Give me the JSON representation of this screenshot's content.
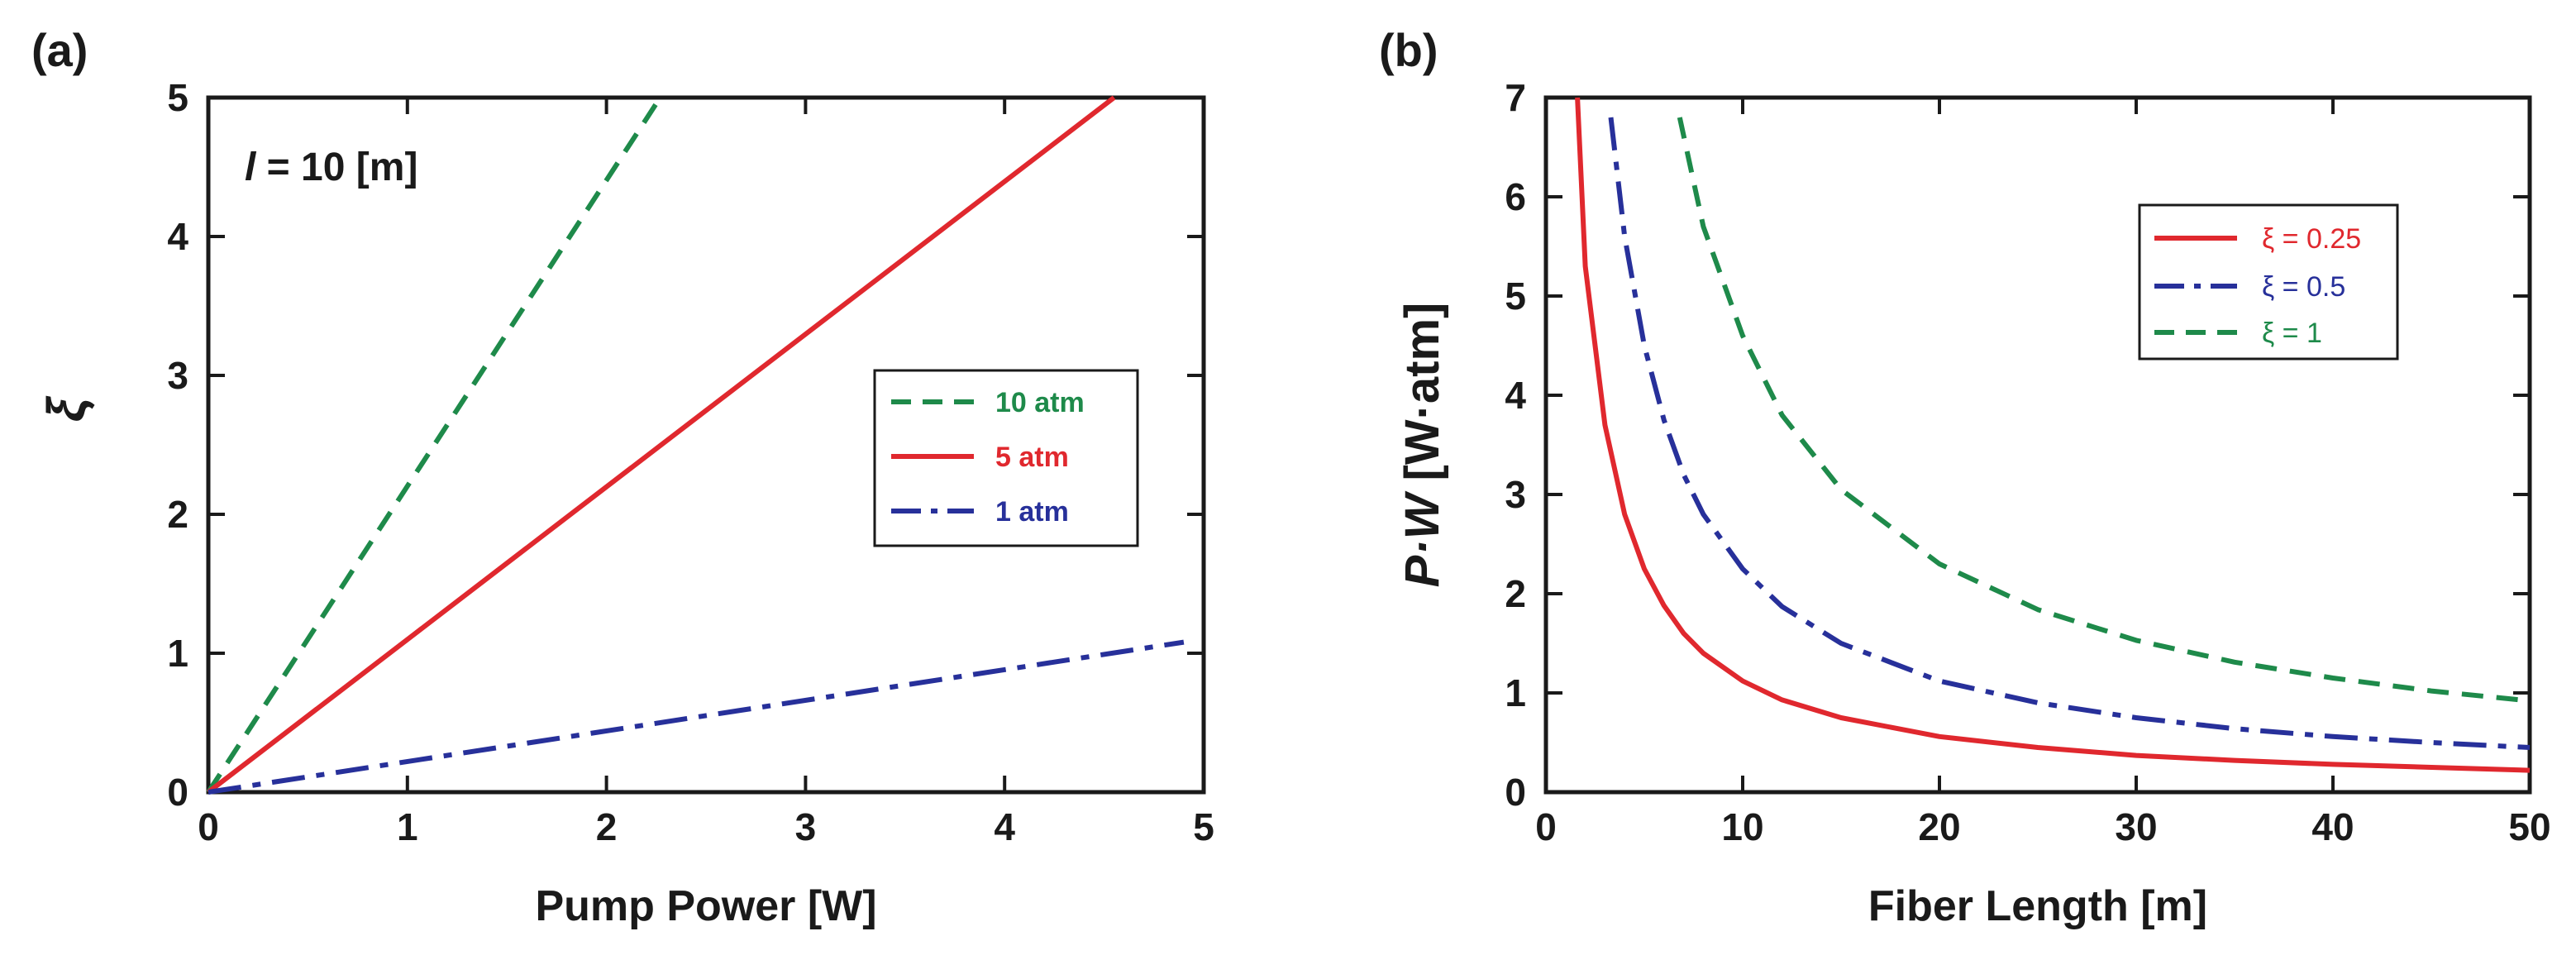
{
  "colors": {
    "green": "#1e8a4a",
    "red": "#e0282e",
    "blue": "#27309a",
    "axis": "#1a1a1a"
  },
  "chart_data": [
    {
      "panel": "(a)",
      "type": "line",
      "title": "",
      "xlabel": "Pump Power [W]",
      "ylabel": "ξ",
      "xlim": [
        0,
        5
      ],
      "ylim": [
        0,
        5
      ],
      "xticks": [
        0,
        1,
        2,
        3,
        4,
        5
      ],
      "yticks": [
        0,
        1,
        2,
        3,
        4,
        5
      ],
      "annotation": {
        "var": "l",
        "rest": " = 10 [m]"
      },
      "legend_position": "center-right",
      "series": [
        {
          "name": "10 atm",
          "color": "green",
          "style": "dashed",
          "x": [
            0,
            2.27
          ],
          "y": [
            0,
            5
          ]
        },
        {
          "name": "5 atm",
          "color": "red",
          "style": "solid",
          "x": [
            0,
            4.55
          ],
          "y": [
            0,
            5
          ]
        },
        {
          "name": "1 atm",
          "color": "blue",
          "style": "dashdot",
          "x": [
            0,
            4.9
          ],
          "y": [
            0,
            1.08
          ]
        }
      ]
    },
    {
      "panel": "(b)",
      "type": "line",
      "title": "",
      "xlabel": "Fiber Length [m]",
      "ylabel_var": "P·W",
      "ylabel_unit": " [W·atm]",
      "xlim": [
        0,
        50
      ],
      "ylim": [
        0,
        7
      ],
      "xticks": [
        0,
        10,
        20,
        30,
        40,
        50
      ],
      "yticks": [
        0,
        1,
        2,
        3,
        4,
        5,
        6,
        7
      ],
      "legend_position": "top-right",
      "series": [
        {
          "name": "ξ = 0.25",
          "color": "red",
          "style": "solid",
          "x": [
            1.6,
            2,
            3,
            4,
            5,
            6,
            7,
            8,
            10,
            12,
            15,
            20,
            25,
            30,
            35,
            40,
            45,
            50
          ],
          "y": [
            7.0,
            5.3,
            3.7,
            2.8,
            2.25,
            1.88,
            1.6,
            1.4,
            1.12,
            0.93,
            0.75,
            0.56,
            0.45,
            0.37,
            0.32,
            0.28,
            0.25,
            0.22
          ]
        },
        {
          "name": "ξ = 0.5",
          "color": "blue",
          "style": "dashdot",
          "x": [
            3.3,
            4,
            5,
            6,
            7,
            8,
            10,
            12,
            15,
            20,
            25,
            30,
            35,
            40,
            45,
            50
          ],
          "y": [
            6.8,
            5.6,
            4.5,
            3.75,
            3.2,
            2.8,
            2.25,
            1.87,
            1.5,
            1.12,
            0.9,
            0.75,
            0.64,
            0.56,
            0.5,
            0.45
          ]
        },
        {
          "name": "ξ = 1",
          "color": "green",
          "style": "dashed",
          "x": [
            6.8,
            8,
            10,
            12,
            15,
            20,
            25,
            30,
            35,
            40,
            45,
            50
          ],
          "y": [
            6.8,
            5.7,
            4.6,
            3.8,
            3.05,
            2.3,
            1.84,
            1.53,
            1.31,
            1.15,
            1.02,
            0.92
          ]
        }
      ]
    }
  ]
}
